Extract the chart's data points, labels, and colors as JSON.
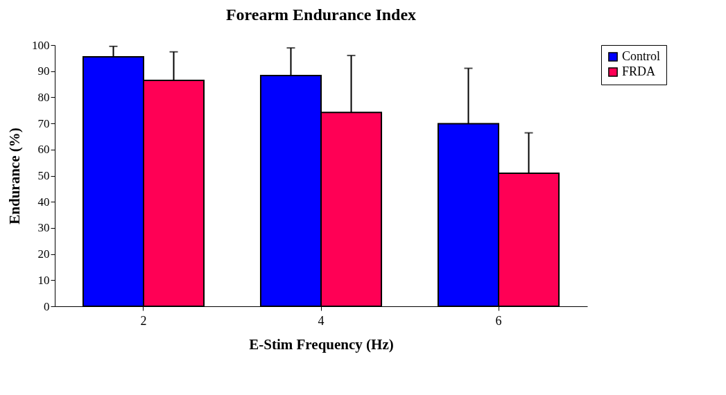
{
  "chart_data": {
    "type": "bar",
    "title": "Forearm Endurance Index",
    "xlabel": "E-Stim Frequency (Hz)",
    "ylabel": "Endurance (%)",
    "categories": [
      "2",
      "4",
      "6"
    ],
    "series": [
      {
        "name": "Control",
        "color": "#0000ff",
        "values": [
          95.5,
          88.3,
          69.9
        ],
        "errors": [
          [
            95.5,
            99.5
          ],
          [
            88.3,
            98.9
          ],
          [
            69.9,
            91.1
          ]
        ]
      },
      {
        "name": "FRDA",
        "color": "#ff0055",
        "values": [
          86.5,
          74.2,
          50.9
        ],
        "errors": [
          [
            86.5,
            97.4
          ],
          [
            74.2,
            96
          ],
          [
            50.9,
            66.4
          ]
        ]
      }
    ],
    "ylim": [
      0,
      100
    ],
    "yticks": [
      0,
      10,
      20,
      30,
      40,
      50,
      60,
      70,
      80,
      90,
      100
    ],
    "grid": false,
    "legend": "right"
  }
}
